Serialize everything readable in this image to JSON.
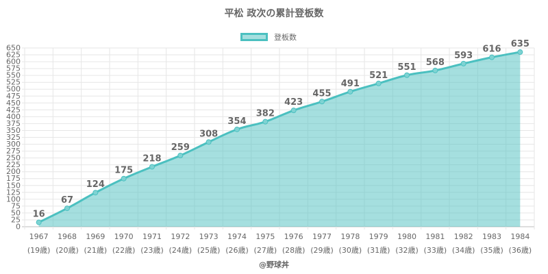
{
  "chart_data": {
    "type": "area",
    "title": "平松 政次の累計登板数",
    "series": [
      {
        "name": "登板数",
        "values": [
          16,
          67,
          124,
          175,
          218,
          259,
          308,
          354,
          382,
          423,
          455,
          491,
          521,
          551,
          568,
          593,
          616,
          635
        ]
      }
    ],
    "categories": [
      "1967",
      "1968",
      "1969",
      "1970",
      "1971",
      "1972",
      "1973",
      "1974",
      "1975",
      "1976",
      "1977",
      "1978",
      "1979",
      "1980",
      "1981",
      "1982",
      "1983",
      "1984"
    ],
    "age_labels": [
      "(19歳)",
      "(20歳)",
      "(21歳)",
      "(22歳)",
      "(23歳)",
      "(24歳)",
      "(25歳)",
      "(26歳)",
      "(27歳)",
      "(28歳)",
      "(29歳)",
      "(30歳)",
      "(31歳)",
      "(32歳)",
      "(33歳)",
      "(34歳)",
      "(35歳)",
      "(36歳)"
    ],
    "ylim": [
      0,
      650
    ],
    "y_step": 25,
    "grid": true,
    "legend_position": "top",
    "data_labels": true,
    "colors": {
      "line": "#4bc0c0",
      "fill": "rgba(75,192,192,0.5)",
      "text": "#666666",
      "grid": "#e6e6e6"
    }
  },
  "footer": {
    "credit": "@野球丼"
  }
}
